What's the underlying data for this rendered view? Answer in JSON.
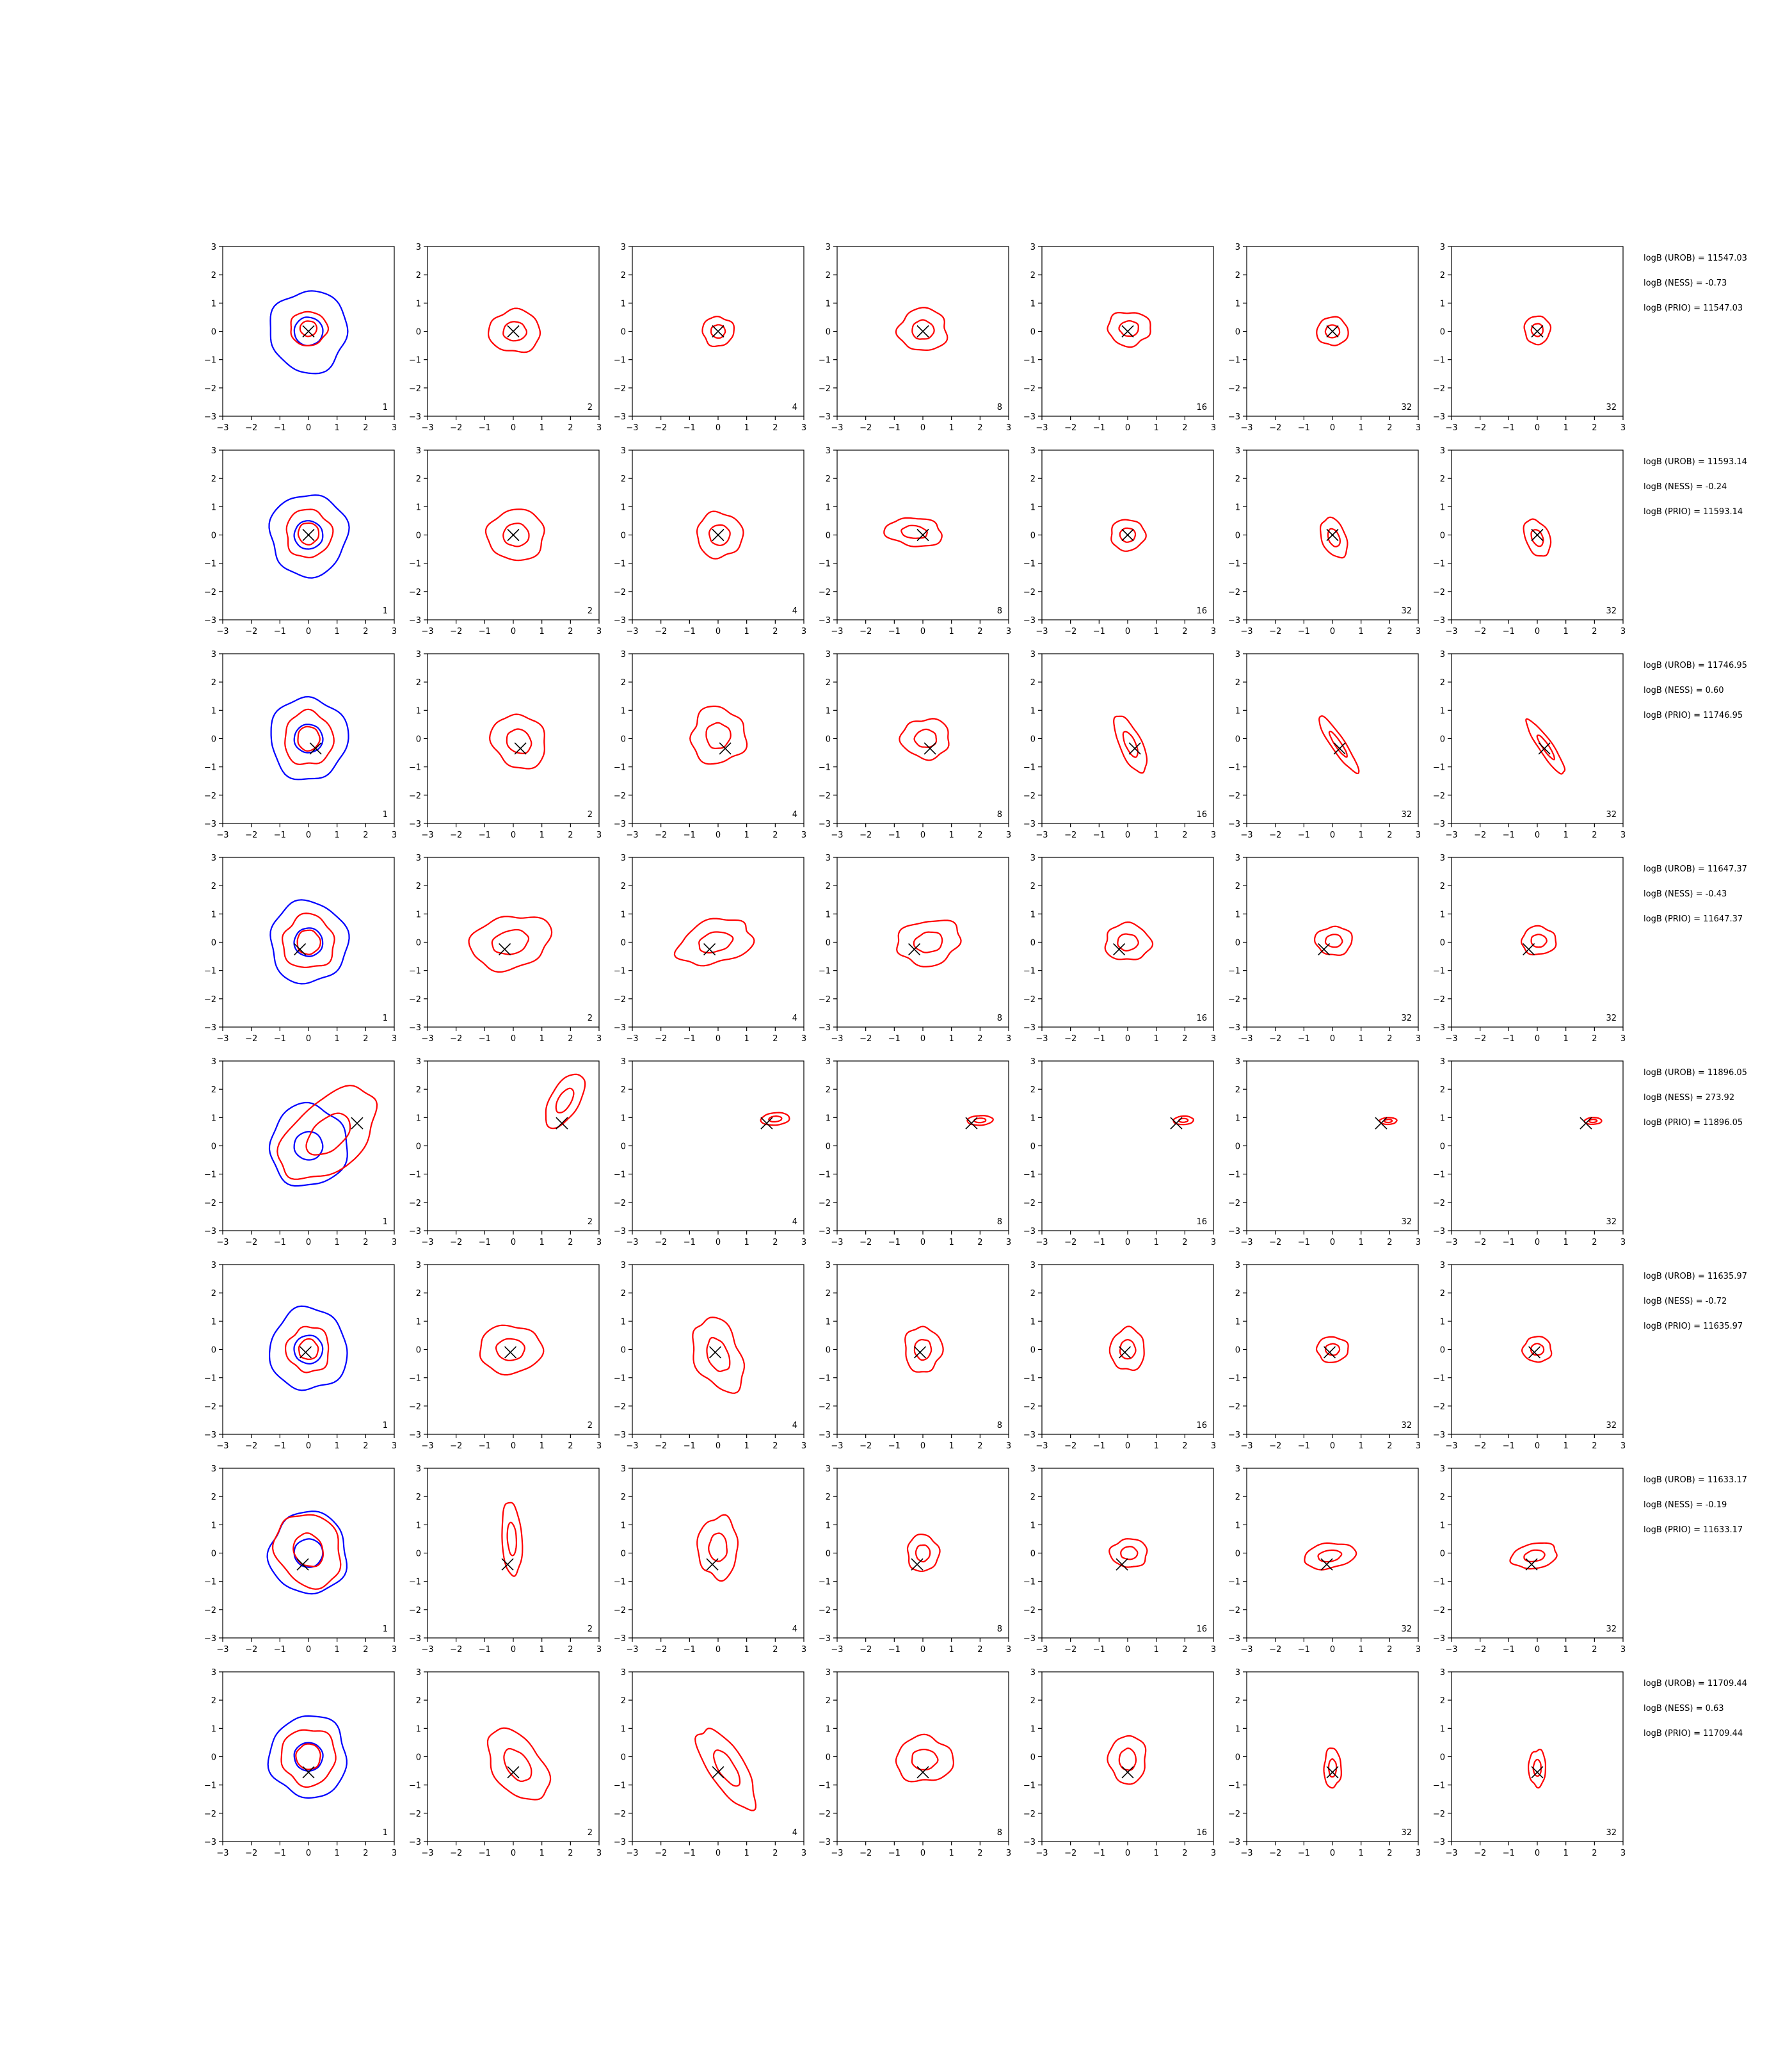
{
  "chart_data": {
    "type": "contour-grid",
    "axis": {
      "xlim": [
        -3,
        3
      ],
      "ylim": [
        -3,
        3
      ],
      "ticks": [
        -3,
        -2,
        -1,
        0,
        1,
        2,
        3
      ],
      "tick_labels": [
        "−3",
        "−2",
        "−1",
        "0",
        "1",
        "2",
        "3"
      ]
    },
    "column_labels": [
      "1",
      "2",
      "4",
      "8",
      "16",
      "32",
      "32"
    ],
    "colors": {
      "posterior": "#ff0000",
      "prior": "#0000ff",
      "marker": "#000000"
    },
    "rows": [
      {
        "truth": [
          0.0,
          0.0
        ],
        "contours": [
          {
            "cx": 0.0,
            "cy": 0.1,
            "rx": 0.65,
            "ry": 0.6,
            "cov": 0.0,
            "rough": 0.06
          },
          {
            "cx": 0.05,
            "cy": 0.0,
            "rx": 0.9,
            "ry": 0.75,
            "cov": 0.0,
            "rough": 0.08
          },
          {
            "cx": 0.0,
            "cy": 0.0,
            "rx": 0.55,
            "ry": 0.52,
            "cov": 0.0,
            "rough": 0.08
          },
          {
            "cx": 0.0,
            "cy": 0.05,
            "rx": 0.85,
            "ry": 0.75,
            "cov": 0.0,
            "rough": 0.1
          },
          {
            "cx": 0.05,
            "cy": 0.1,
            "rx": 0.75,
            "ry": 0.6,
            "cov": 0.0,
            "rough": 0.1
          },
          {
            "cx": 0.0,
            "cy": 0.0,
            "rx": 0.55,
            "ry": 0.5,
            "cov": 0.0,
            "rough": 0.06
          },
          {
            "cx": 0.0,
            "cy": 0.05,
            "rx": 0.45,
            "ry": 0.5,
            "cov": 0.0,
            "rough": 0.06
          }
        ],
        "logB": [
          "logB (UROB) = 11547.03",
          "logB (NESS) = -0.73",
          "logB (PRIO) = 11547.03"
        ]
      },
      {
        "truth": [
          0.0,
          0.0
        ],
        "contours": [
          {
            "cx": 0.0,
            "cy": 0.05,
            "rx": 0.8,
            "ry": 0.85,
            "cov": 0.0,
            "rough": 0.08
          },
          {
            "cx": 0.1,
            "cy": 0.0,
            "rx": 1.0,
            "ry": 0.9,
            "cov": 0.0,
            "rough": 0.07
          },
          {
            "cx": 0.05,
            "cy": 0.0,
            "rx": 0.8,
            "ry": 0.8,
            "cov": 0.0,
            "rough": 0.08
          },
          {
            "cx": -0.3,
            "cy": 0.1,
            "rx": 1.0,
            "ry": 0.5,
            "cov": -0.1,
            "rough": 0.1
          },
          {
            "cx": 0.0,
            "cy": 0.0,
            "rx": 0.6,
            "ry": 0.55,
            "cov": 0.0,
            "rough": 0.07
          },
          {
            "cx": 0.05,
            "cy": -0.1,
            "rx": 0.45,
            "ry": 0.7,
            "cov": -0.2,
            "rough": 0.06
          },
          {
            "cx": 0.0,
            "cy": -0.1,
            "rx": 0.45,
            "ry": 0.65,
            "cov": -0.2,
            "rough": 0.06
          }
        ],
        "logB": [
          "logB (UROB) = 11593.14",
          "logB (NESS) = -0.24",
          "logB (PRIO) = 11593.14"
        ]
      },
      {
        "truth": [
          0.25,
          -0.35
        ],
        "contours": [
          {
            "cx": 0.0,
            "cy": 0.0,
            "rx": 0.85,
            "ry": 0.95,
            "cov": 0.0,
            "rough": 0.08
          },
          {
            "cx": 0.2,
            "cy": -0.1,
            "rx": 0.95,
            "ry": 0.95,
            "cov": -0.1,
            "rough": 0.08
          },
          {
            "cx": 0.0,
            "cy": 0.1,
            "rx": 0.95,
            "ry": 1.0,
            "cov": 0.0,
            "rough": 0.12
          },
          {
            "cx": 0.1,
            "cy": 0.0,
            "rx": 0.85,
            "ry": 0.7,
            "cov": 0.0,
            "rough": 0.1
          },
          {
            "cx": 0.1,
            "cy": -0.2,
            "rx": 0.45,
            "ry": 1.0,
            "cov": -0.35,
            "rough": 0.06
          },
          {
            "cx": 0.2,
            "cy": -0.2,
            "rx": 0.35,
            "ry": 1.0,
            "cov": -0.6,
            "rough": 0.06
          },
          {
            "cx": 0.3,
            "cy": -0.3,
            "rx": 0.35,
            "ry": 0.95,
            "cov": -0.6,
            "rough": 0.06
          }
        ],
        "logB": [
          "logB (UROB) = 11746.95",
          "logB (NESS) = 0.60",
          "logB (PRIO) = 11746.95"
        ]
      },
      {
        "truth": [
          -0.3,
          -0.25
        ],
        "contours": [
          {
            "cx": 0.0,
            "cy": 0.0,
            "rx": 0.9,
            "ry": 0.95,
            "cov": 0.0,
            "rough": 0.1
          },
          {
            "cx": -0.1,
            "cy": 0.0,
            "rx": 1.4,
            "ry": 0.95,
            "cov": 0.15,
            "rough": 0.1
          },
          {
            "cx": -0.1,
            "cy": 0.0,
            "rx": 1.3,
            "ry": 0.8,
            "cov": 0.2,
            "rough": 0.12
          },
          {
            "cx": 0.2,
            "cy": 0.0,
            "rx": 1.1,
            "ry": 0.8,
            "cov": 0.1,
            "rough": 0.12
          },
          {
            "cx": 0.0,
            "cy": 0.0,
            "rx": 0.8,
            "ry": 0.65,
            "cov": 0.0,
            "rough": 0.1
          },
          {
            "cx": 0.05,
            "cy": 0.05,
            "rx": 0.65,
            "ry": 0.5,
            "cov": 0.0,
            "rough": 0.08
          },
          {
            "cx": 0.05,
            "cy": 0.05,
            "rx": 0.6,
            "ry": 0.5,
            "cov": 0.0,
            "rough": 0.08
          }
        ],
        "logB": [
          "logB (UROB) = 11647.37",
          "logB (NESS) = -0.43",
          "logB (PRIO) = 11647.37"
        ]
      },
      {
        "truth": [
          1.7,
          0.8
        ],
        "contours": [
          {
            "cx": 0.7,
            "cy": 0.4,
            "rx": 1.6,
            "ry": 1.6,
            "cov": 0.35,
            "rough": 0.08
          },
          {
            "cx": 1.8,
            "cy": 1.6,
            "rx": 0.6,
            "ry": 0.95,
            "cov": 0.35,
            "rough": 0.04
          },
          {
            "cx": 2.0,
            "cy": 0.95,
            "rx": 0.5,
            "ry": 0.22,
            "cov": 0.1,
            "rough": 0.03
          },
          {
            "cx": 2.0,
            "cy": 0.9,
            "rx": 0.45,
            "ry": 0.17,
            "cov": 0.06,
            "rough": 0.03
          },
          {
            "cx": 1.95,
            "cy": 0.9,
            "rx": 0.35,
            "ry": 0.15,
            "cov": 0.05,
            "rough": 0.03
          },
          {
            "cx": 1.95,
            "cy": 0.88,
            "rx": 0.3,
            "ry": 0.12,
            "cov": 0.04,
            "rough": 0.03
          },
          {
            "cx": 1.95,
            "cy": 0.88,
            "rx": 0.3,
            "ry": 0.12,
            "cov": 0.04,
            "rough": 0.03
          }
        ],
        "logB": [
          "logB (UROB) = 11896.05",
          "logB (NESS) = 273.92",
          "logB (PRIO) = 11896.05"
        ]
      },
      {
        "truth": [
          -0.1,
          -0.1
        ],
        "contours": [
          {
            "cx": 0.0,
            "cy": 0.0,
            "rx": 0.75,
            "ry": 0.8,
            "cov": 0.0,
            "rough": 0.1
          },
          {
            "cx": -0.1,
            "cy": 0.0,
            "rx": 1.1,
            "ry": 0.85,
            "cov": 0.0,
            "rough": 0.07
          },
          {
            "cx": 0.0,
            "cy": -0.2,
            "rx": 0.85,
            "ry": 1.3,
            "cov": -0.2,
            "rough": 0.12
          },
          {
            "cx": 0.0,
            "cy": 0.0,
            "rx": 0.65,
            "ry": 0.8,
            "cov": 0.0,
            "rough": 0.1
          },
          {
            "cx": 0.0,
            "cy": 0.0,
            "rx": 0.6,
            "ry": 0.75,
            "cov": 0.0,
            "rough": 0.08
          },
          {
            "cx": 0.0,
            "cy": 0.0,
            "rx": 0.55,
            "ry": 0.45,
            "cov": 0.0,
            "rough": 0.07
          },
          {
            "cx": 0.0,
            "cy": 0.0,
            "rx": 0.5,
            "ry": 0.45,
            "cov": 0.0,
            "rough": 0.07
          }
        ],
        "logB": [
          "logB (UROB) = 11635.97",
          "logB (NESS) = -0.72",
          "logB (PRIO) = 11635.97"
        ]
      },
      {
        "truth": [
          -0.2,
          -0.4
        ],
        "contours": [
          {
            "cx": 0.0,
            "cy": 0.1,
            "rx": 1.15,
            "ry": 1.3,
            "cov": -0.1,
            "rough": 0.08
          },
          {
            "cx": -0.05,
            "cy": 0.5,
            "rx": 0.35,
            "ry": 1.3,
            "cov": -0.05,
            "rough": 0.05
          },
          {
            "cx": 0.0,
            "cy": 0.2,
            "rx": 0.7,
            "ry": 1.1,
            "cov": 0.0,
            "rough": 0.1
          },
          {
            "cx": 0.0,
            "cy": 0.0,
            "rx": 0.55,
            "ry": 0.65,
            "cov": 0.0,
            "rough": 0.08
          },
          {
            "cx": 0.05,
            "cy": 0.0,
            "rx": 0.65,
            "ry": 0.5,
            "cov": 0.0,
            "rough": 0.08
          },
          {
            "cx": -0.1,
            "cy": -0.1,
            "rx": 0.9,
            "ry": 0.45,
            "cov": 0.15,
            "rough": 0.07
          },
          {
            "cx": -0.1,
            "cy": -0.1,
            "rx": 0.8,
            "ry": 0.45,
            "cov": 0.15,
            "rough": 0.07
          }
        ],
        "logB": [
          "logB (UROB) = 11633.17",
          "logB (NESS) = -0.19",
          "logB (PRIO) = 11633.17"
        ]
      },
      {
        "truth": [
          0.0,
          -0.55
        ],
        "contours": [
          {
            "cx": 0.0,
            "cy": 0.0,
            "rx": 0.95,
            "ry": 1.0,
            "cov": 0.0,
            "rough": 0.08
          },
          {
            "cx": 0.15,
            "cy": -0.3,
            "rx": 1.0,
            "ry": 1.25,
            "cov": -0.3,
            "rough": 0.08
          },
          {
            "cx": 0.3,
            "cy": -0.4,
            "rx": 0.8,
            "ry": 1.4,
            "cov": -0.45,
            "rough": 0.08
          },
          {
            "cx": 0.05,
            "cy": -0.1,
            "rx": 1.0,
            "ry": 0.8,
            "cov": 0.0,
            "rough": 0.1
          },
          {
            "cx": 0.0,
            "cy": -0.1,
            "rx": 0.65,
            "ry": 0.85,
            "cov": 0.0,
            "rough": 0.08
          },
          {
            "cx": 0.0,
            "cy": -0.4,
            "rx": 0.3,
            "ry": 0.7,
            "cov": 0.0,
            "rough": 0.08
          },
          {
            "cx": 0.0,
            "cy": -0.4,
            "rx": 0.3,
            "ry": 0.65,
            "cov": 0.0,
            "rough": 0.08
          }
        ],
        "logB": [
          "logB (UROB) = 11709.44",
          "logB (NESS) = 0.63",
          "logB (PRIO) = 11709.44"
        ]
      }
    ]
  }
}
